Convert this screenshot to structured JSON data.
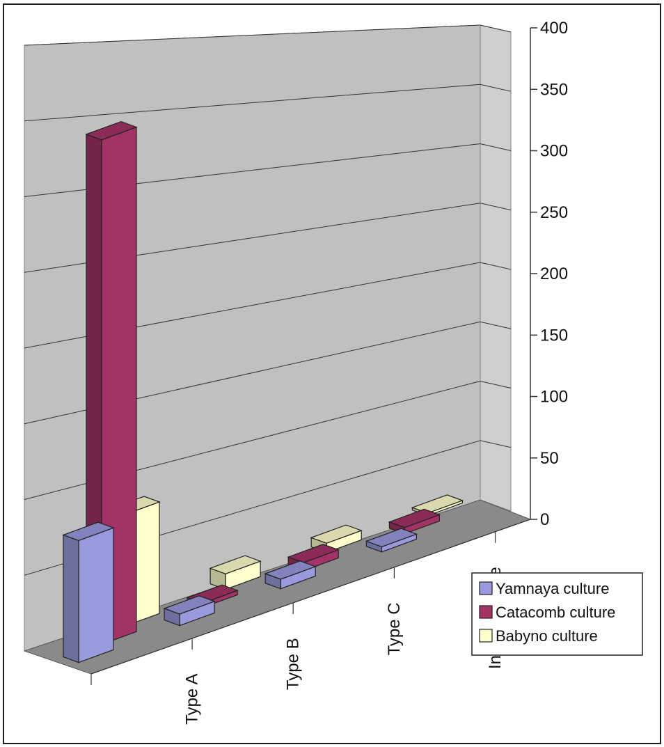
{
  "chart_data": {
    "type": "bar",
    "categories": [
      "Type A",
      "Type B",
      "Type C",
      "Indeterminate"
    ],
    "series": [
      {
        "name": "Yamnaya culture",
        "values": [
          80,
          8,
          7,
          4
        ]
      },
      {
        "name": "Catacomb culture",
        "values": [
          335,
          3,
          6,
          5
        ]
      },
      {
        "name": "Babyno culture",
        "values": [
          75,
          11,
          7,
          2
        ]
      }
    ],
    "ylim": [
      0,
      400
    ],
    "yticks": [
      0,
      50,
      100,
      150,
      200,
      250,
      300,
      350,
      400
    ],
    "grid": true,
    "legend_position": "right",
    "three_d": true
  },
  "colors": {
    "Yamnaya culture": "#9999dd",
    "Catacomb culture": "#a33366",
    "Babyno culture": "#ffffcc",
    "wall": "#c0c0c0",
    "floor": "#8a8a8a"
  }
}
